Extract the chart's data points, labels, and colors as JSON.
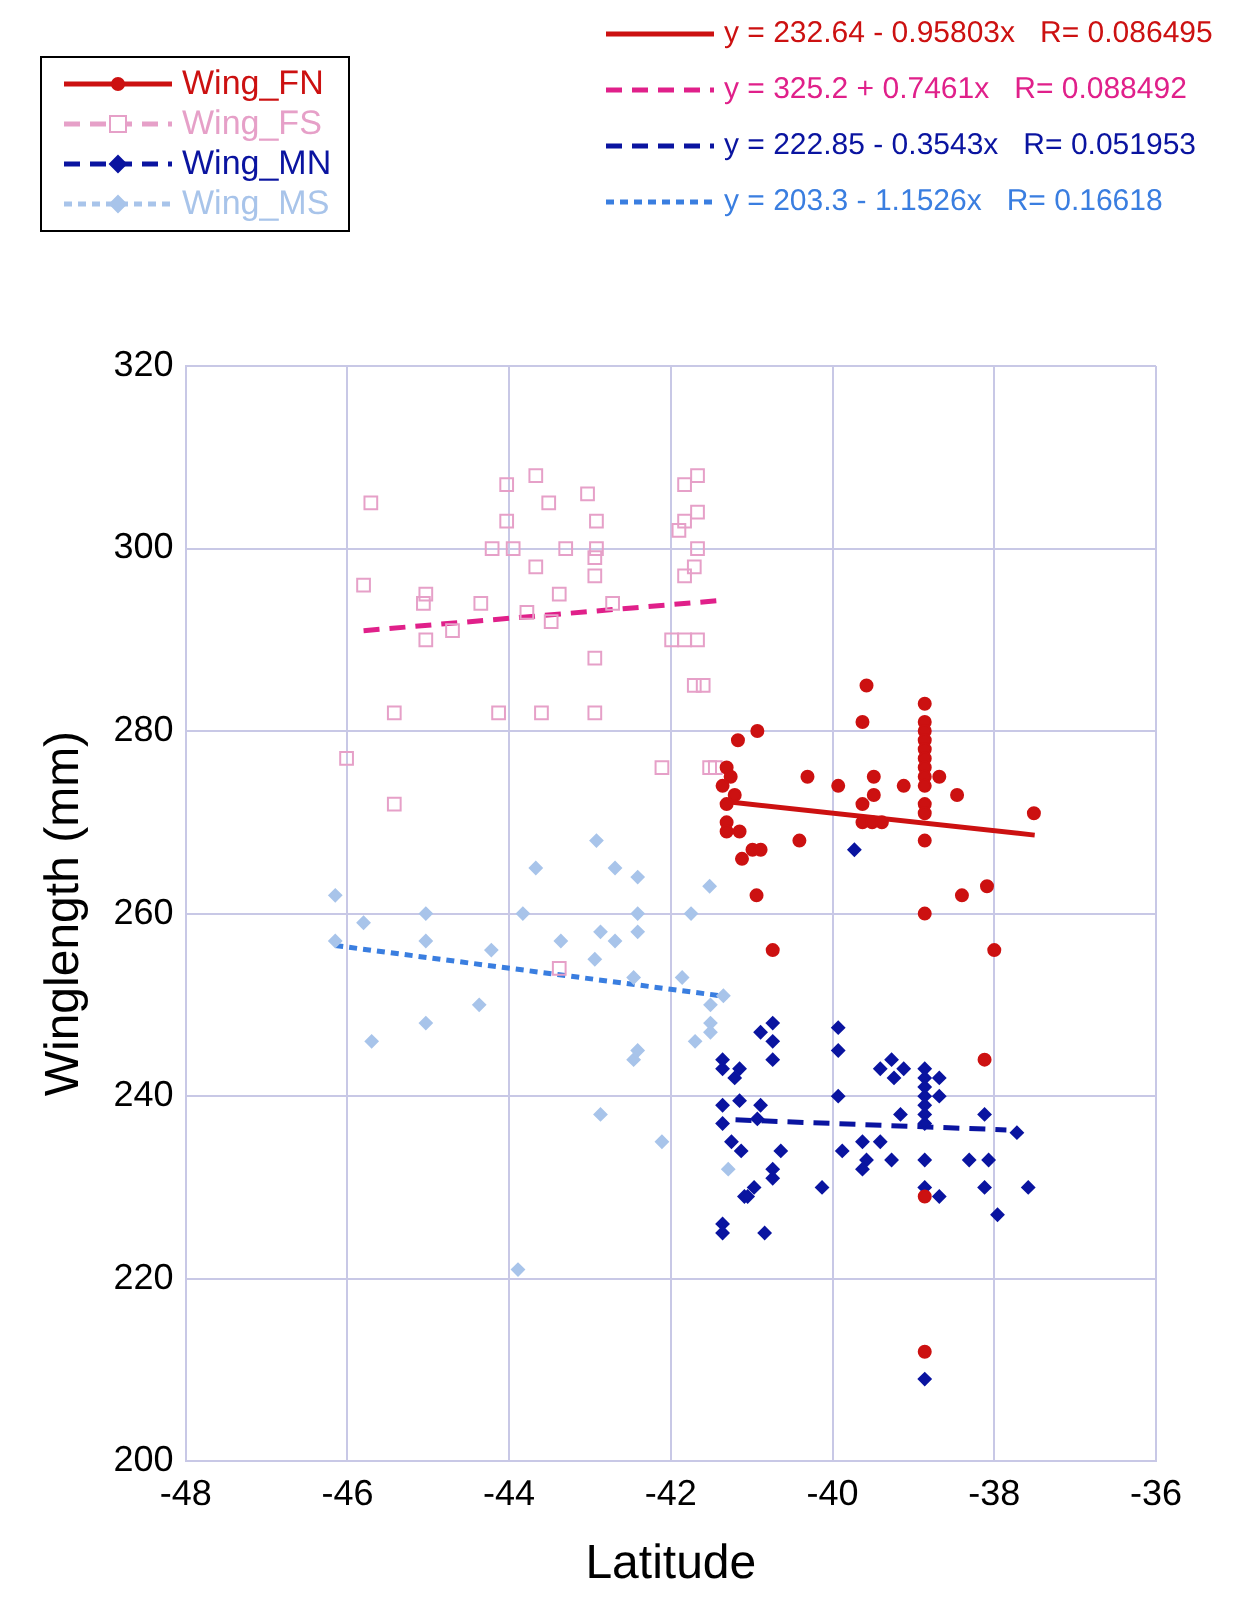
{
  "chart_data": {
    "type": "scatter",
    "xlabel": "Latitude",
    "ylabel": "Winglength (mm)",
    "xlim": [
      -48,
      -36
    ],
    "xticks": [
      -48,
      -46,
      -44,
      -42,
      -40,
      -38,
      -36
    ],
    "ylim": [
      200,
      320
    ],
    "yticks": [
      200,
      220,
      240,
      260,
      280,
      300,
      320
    ],
    "grid": true,
    "legend": "top",
    "series": [
      {
        "name": "Wing_FN",
        "type": "scatter",
        "color": "#cc1111",
        "marker": "circle",
        "line_style": "solid",
        "x": [
          -39.58,
          -39.63,
          -38.86,
          -38.86,
          -38.86,
          -38.86,
          -38.86,
          -38.86,
          -38.86,
          -38.86,
          -38.86,
          -38.86,
          -38.86,
          -38.86,
          -38.86,
          -41.17,
          -40.93,
          -41.31,
          -41.26,
          -41.36,
          -41.21,
          -41.31,
          -41.31,
          -41.31,
          -41.15,
          -41.12,
          -40.99,
          -40.89,
          -40.94,
          -40.74,
          -40.41,
          -40.31,
          -39.93,
          -39.63,
          -39.63,
          -39.51,
          -39.39,
          -39.49,
          -39.49,
          -39.12,
          -38.68,
          -38.46,
          -38.4,
          -38.09,
          -38.0,
          -37.51,
          -38.12,
          -38.86,
          -38.86
        ],
        "values": [
          285,
          281,
          283,
          281,
          280,
          279,
          278,
          277,
          276,
          275,
          274,
          272,
          271,
          268,
          260,
          279,
          280,
          276,
          275,
          274,
          273,
          272,
          270,
          269,
          269,
          266,
          267,
          267,
          262,
          256,
          268,
          275,
          274,
          272,
          270,
          270,
          270,
          275,
          273,
          274,
          275,
          273,
          262,
          263,
          256,
          271,
          244,
          229,
          212
        ]
      },
      {
        "name": "Wing_FS",
        "type": "scatter",
        "color": "#e6a0c8",
        "marker": "square",
        "line_style": "dashed",
        "x": [
          -45.71,
          -45.8,
          -45.03,
          -45.06,
          -45.03,
          -44.7,
          -44.35,
          -45.42,
          -46.01,
          -45.42,
          -44.03,
          -43.67,
          -43.51,
          -44.03,
          -44.21,
          -43.95,
          -43.67,
          -43.3,
          -43.03,
          -42.92,
          -42.92,
          -42.94,
          -42.94,
          -43.38,
          -43.48,
          -43.78,
          -42.72,
          -42.94,
          -44.13,
          -43.6,
          -42.94,
          -42.11,
          -41.83,
          -41.67,
          -41.67,
          -41.83,
          -41.9,
          -41.67,
          -41.71,
          -41.83,
          -41.99,
          -41.83,
          -41.67,
          -41.71,
          -41.6,
          -41.52,
          -41.45,
          -43.38
        ],
        "values": [
          305,
          296,
          295,
          294,
          290,
          291,
          294,
          282,
          277,
          272,
          307,
          308,
          305,
          303,
          300,
          300,
          298,
          300,
          306,
          303,
          300,
          299,
          297,
          295,
          292,
          293,
          294,
          288,
          282,
          282,
          282,
          276,
          307,
          308,
          304,
          303,
          302,
          300,
          298,
          297,
          290,
          290,
          290,
          285,
          285,
          276,
          276,
          254
        ]
      },
      {
        "name": "Wing_MN",
        "type": "scatter",
        "color": "#0a14a0",
        "marker": "diamond",
        "line_style": "dashed",
        "x": [
          -41.36,
          -41.36,
          -41.36,
          -41.36,
          -41.36,
          -41.36,
          -41.15,
          -41.21,
          -41.15,
          -41.25,
          -41.13,
          -41.09,
          -41.05,
          -40.97,
          -40.89,
          -40.74,
          -40.74,
          -40.74,
          -40.89,
          -40.93,
          -40.74,
          -40.74,
          -40.84,
          -40.64,
          -40.13,
          -39.93,
          -39.93,
          -39.93,
          -39.88,
          -39.63,
          -39.41,
          -39.58,
          -39.63,
          -39.27,
          -39.41,
          -39.27,
          -39.12,
          -39.24,
          -39.16,
          -38.86,
          -38.86,
          -38.86,
          -38.86,
          -38.86,
          -38.86,
          -38.86,
          -38.86,
          -38.86,
          -38.86,
          -38.68,
          -38.68,
          -38.68,
          -38.31,
          -38.07,
          -38.12,
          -38.12,
          -37.96,
          -37.72,
          -37.58,
          -39.73
        ],
        "values": [
          244,
          243,
          239,
          237,
          226,
          225,
          243,
          242,
          239.5,
          235,
          234,
          229,
          229,
          230,
          247,
          248,
          246,
          244,
          239,
          237.5,
          232,
          231,
          225,
          234,
          230,
          247.5,
          245,
          240,
          234,
          235,
          235,
          233,
          232,
          233,
          243,
          244,
          243,
          242,
          238,
          243,
          242,
          241,
          240,
          239,
          238,
          237,
          233,
          230,
          209,
          242,
          240,
          229,
          233,
          233,
          238,
          230,
          227,
          236,
          230,
          267
        ]
      },
      {
        "name": "Wing_MS",
        "type": "scatter",
        "color": "#a8c4ea",
        "marker": "diamond",
        "line_style": "dotted",
        "x": [
          -46.15,
          -46.15,
          -45.8,
          -45.7,
          -45.03,
          -45.03,
          -45.03,
          -44.37,
          -44.22,
          -43.83,
          -43.67,
          -43.36,
          -42.92,
          -42.69,
          -42.41,
          -42.87,
          -42.69,
          -42.41,
          -42.41,
          -42.94,
          -42.46,
          -41.86,
          -41.75,
          -41.52,
          -41.35,
          -41.51,
          -41.51,
          -41.51,
          -41.7,
          -42.41,
          -42.46,
          -42.87,
          -42.11,
          -41.29,
          -43.89
        ],
        "values": [
          262,
          257,
          259,
          246,
          260,
          257,
          248,
          250,
          256,
          260,
          265,
          257,
          268,
          265,
          264,
          258,
          257,
          258,
          260,
          255,
          253,
          253,
          260,
          263,
          251,
          250,
          248,
          247,
          246,
          245,
          244,
          238,
          235,
          232,
          221
        ]
      },
      {
        "name": "y = 232.64 - 0.95803x   R= 0.086495",
        "type": "line",
        "color": "#cc1111",
        "line_style": "solid",
        "x": [
          -41.24,
          -37.5
        ],
        "values": [
          272.2,
          268.6
        ]
      },
      {
        "name": "y = 325.2 + 0.7461x   R= 0.088492",
        "type": "line",
        "color": "#e0208a",
        "line_style": "dashed",
        "x": [
          -45.8,
          -41.4
        ],
        "values": [
          291.0,
          294.3
        ]
      },
      {
        "name": "y = 222.85 - 0.3543x   R= 0.051953",
        "type": "line",
        "color": "#0a14a0",
        "line_style": "dashed",
        "x": [
          -41.2,
          -37.85
        ],
        "values": [
          237.4,
          236.3
        ]
      },
      {
        "name": "y = 203.3 - 1.1526x   R= 0.16618",
        "type": "line",
        "color": "#3a7ee0",
        "line_style": "dotted",
        "x": [
          -46.15,
          -41.3
        ],
        "values": [
          256.5,
          250.9
        ]
      }
    ]
  }
}
